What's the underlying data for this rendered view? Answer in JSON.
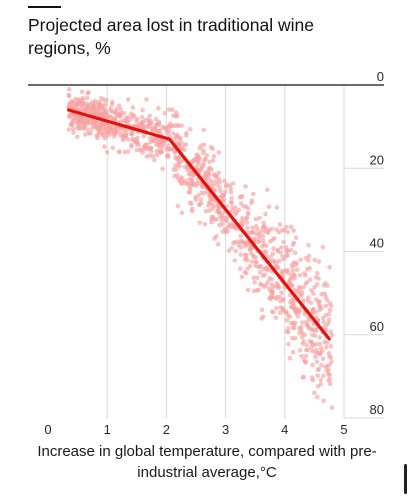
{
  "chart_data": {
    "type": "scatter",
    "title": "Projected area lost in traditional wine regions, %",
    "xlabel": "Increase in global temperature, compared with pre-industrial average,°C",
    "ylabel": "",
    "xlim": [
      0,
      5
    ],
    "ylim": [
      0,
      80
    ],
    "y_inverted": true,
    "x_ticks": [
      "0",
      "1",
      "2",
      "3",
      "4",
      "5"
    ],
    "y_ticks": [
      "0",
      "20",
      "40",
      "60",
      "80"
    ],
    "grid": "vertical",
    "y_axis_side": "right",
    "scatter_clusters": [
      {
        "x_from": 0.35,
        "x_to": 1.0,
        "y_center": 7,
        "spread": 4
      },
      {
        "x_from": 1.0,
        "x_to": 2.1,
        "y_center": 11,
        "spread": 5
      },
      {
        "x_from": 2.1,
        "x_to": 3.0,
        "y_center": 26,
        "spread": 8
      },
      {
        "x_from": 3.0,
        "x_to": 4.0,
        "y_center": 40,
        "spread": 11
      },
      {
        "x_from": 4.0,
        "x_to": 4.8,
        "y_center": 55,
        "spread": 14
      }
    ],
    "trend_line": {
      "x": [
        0.35,
        2.05,
        4.75
      ],
      "y": [
        6,
        13,
        61
      ]
    },
    "colors": {
      "points": "#f8a3a3",
      "trend": "#e3120b",
      "grid": "#d9d9d9",
      "zero_line": "#121212"
    }
  }
}
